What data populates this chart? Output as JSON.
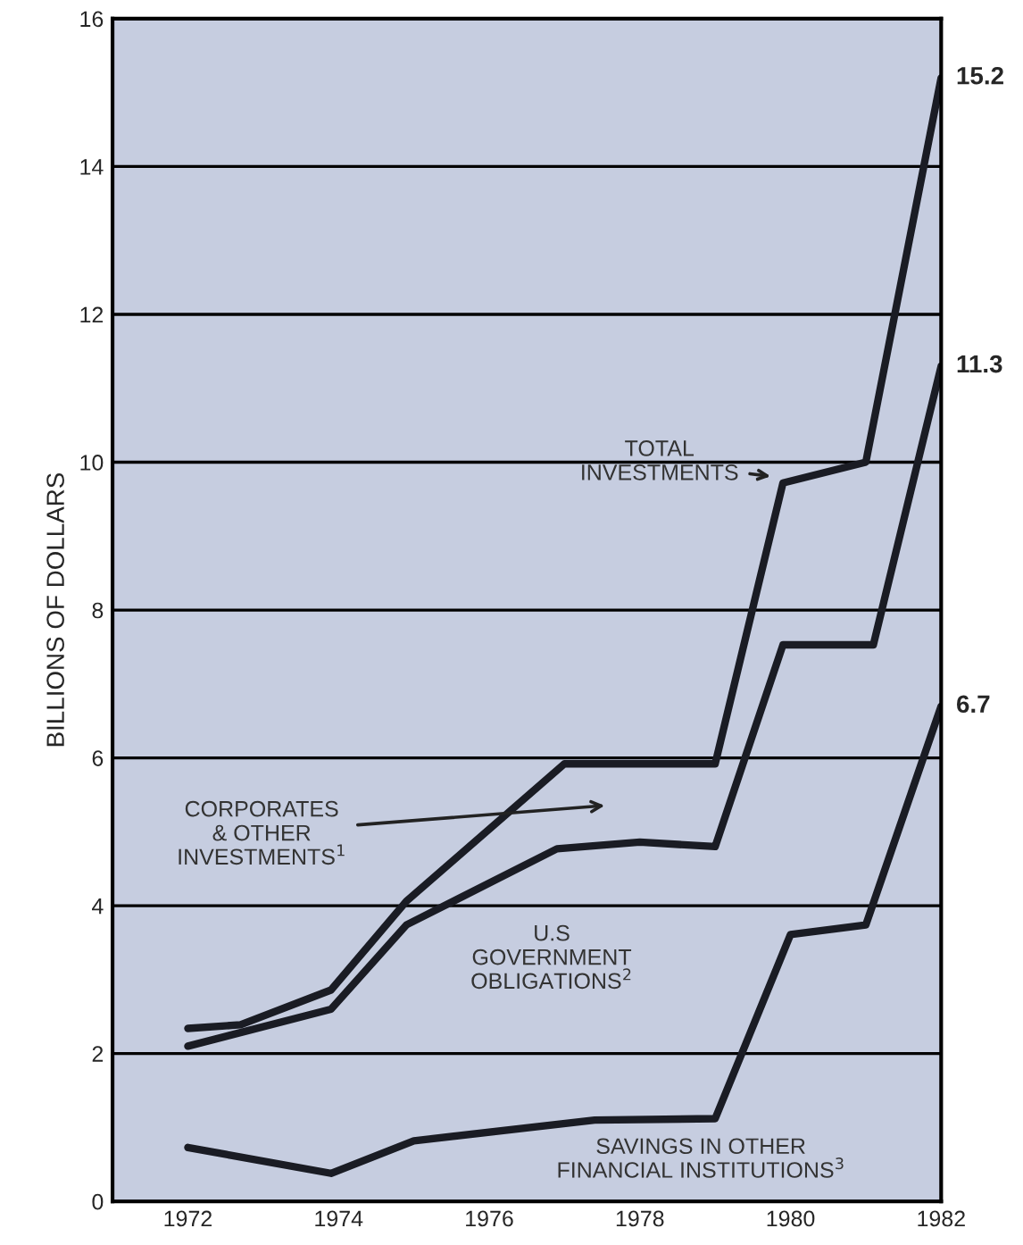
{
  "chart_data": {
    "type": "line",
    "ylabel": "BILLIONS OF DOLLARS",
    "series": [
      {
        "color": "#1a1c24",
        "x": [
          1972,
          1972.7,
          1973.9,
          1974.9,
          1977.0,
          1979.0,
          1979.9,
          1981.0,
          1982
        ],
        "values": [
          2.34,
          2.39,
          2.86,
          4.06,
          5.92,
          5.92,
          9.72,
          10.0,
          15.2
        ],
        "value_labels": [
          null,
          null,
          null,
          null,
          null,
          null,
          null,
          null,
          "15.2"
        ]
      },
      {
        "color": "#1a1c24",
        "x": [
          1972,
          1973.9,
          1974.9,
          1976.9,
          1978.0,
          1979.0,
          1979.9,
          1981.1,
          1982
        ],
        "values": [
          2.1,
          2.6,
          3.74,
          4.77,
          4.86,
          4.8,
          7.53,
          7.53,
          11.3
        ],
        "value_labels": [
          null,
          null,
          null,
          null,
          null,
          null,
          null,
          null,
          "11.3"
        ]
      },
      {
        "color": "#1a1c24",
        "x": [
          1972,
          1973.9,
          1975.0,
          1977.4,
          1979.0,
          1980.0,
          1981.0,
          1982
        ],
        "values": [
          0.73,
          0.38,
          0.82,
          1.1,
          1.12,
          3.61,
          3.74,
          6.7
        ],
        "value_labels": [
          null,
          null,
          null,
          null,
          null,
          null,
          null,
          "6.7"
        ]
      }
    ],
    "annotations": [
      {
        "text": "TOTAL\nINVESTMENTS",
        "x": 1979.8,
        "y": 9.8
      },
      "CORPORATES\n& OTHER\nINVESTMENTS$^{1}$",
      "U.S\nGOVERNMENT\nOBLIGATIONS$^{2}$",
      "SAVINGS IN OTHER\nFINANCIAL INSTITUTIONS$^{3}$"
    ],
    "xlim": [
      1971,
      1982
    ],
    "xticks": [
      1972,
      1974,
      1976,
      1978,
      1980,
      1982
    ],
    "ylim": [
      0,
      16
    ],
    "yticks": [
      0,
      2,
      4,
      6,
      8,
      10,
      12,
      14,
      16
    ],
    "grid": "y",
    "legend": false,
    "marker": "none",
    "line_style": "solid"
  }
}
